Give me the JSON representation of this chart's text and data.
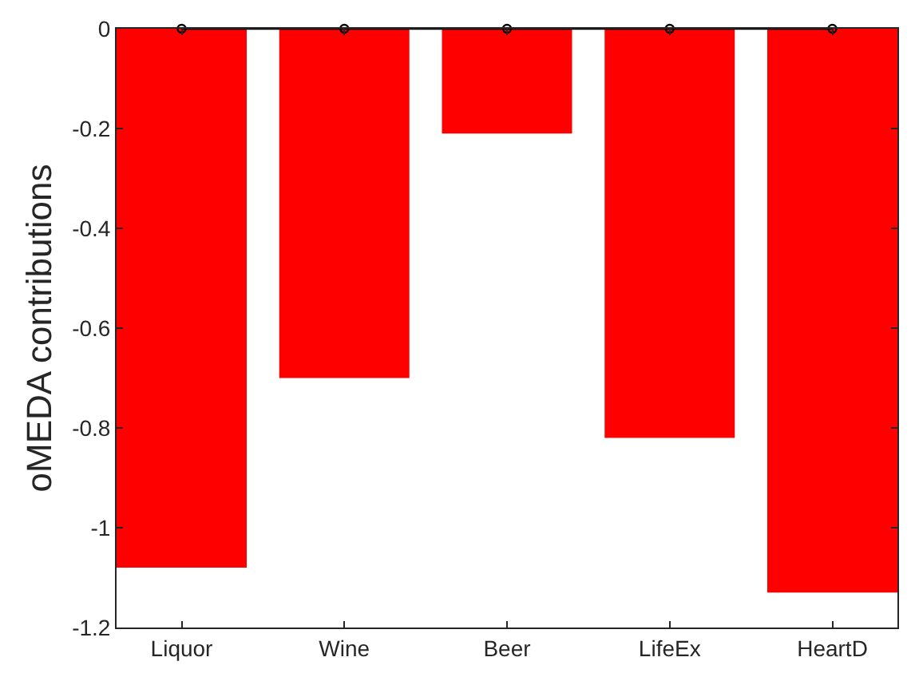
{
  "chart_data": {
    "type": "bar",
    "ylabel": "oMEDA contributions",
    "categories": [
      "Liquor",
      "Wine",
      "Beer",
      "LifeEx",
      "HeartD"
    ],
    "series": [
      {
        "color": "#ff0000",
        "values": [
          -1.08,
          -0.7,
          -0.21,
          -0.82,
          -1.13
        ]
      },
      {
        "type": "line",
        "color": "#000000",
        "marker": "circle",
        "values": [
          0,
          0,
          0,
          0,
          0
        ]
      }
    ],
    "ylim": [
      -1.2,
      0
    ],
    "yticks": [
      -1.2,
      -1,
      -0.8,
      -0.6,
      -0.4,
      -0.2,
      0
    ]
  }
}
